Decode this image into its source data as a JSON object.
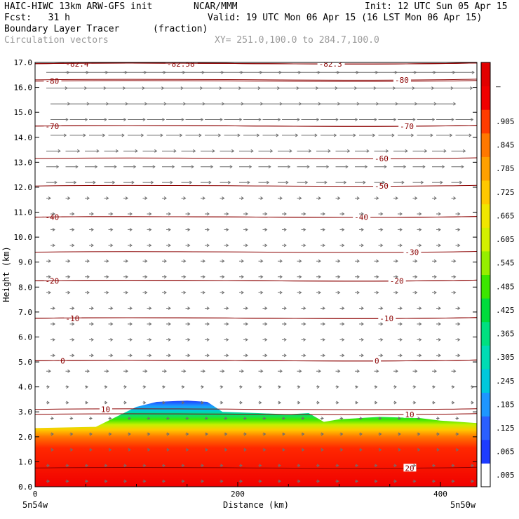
{
  "header": {
    "model": "HAIC-HIWC 13km ARW-GFS init",
    "org": "NCAR/MMM",
    "init": "Init: 12 UTC Sun 05 Apr 15",
    "fcst": "Fcst:   31 h",
    "valid": "Valid: 19 UTC Mon 06 Apr 15 (16 LST Mon 06 Apr 15)",
    "field": "Boundary Layer Tracer",
    "units": "(fraction)",
    "vectors": "Circulation vectors",
    "xy": "XY= 251.0,100.0 to 284.7,100.0"
  },
  "chart_data": {
    "type": "heatmap",
    "title": "Boundary Layer Tracer",
    "xlabel": "Distance (km)",
    "ylabel": "Height (km)",
    "xlim": [
      0,
      436
    ],
    "ylim": [
      0,
      17
    ],
    "x_ticks": [
      "0",
      "200",
      "400"
    ],
    "x_tick_values": [
      0,
      200,
      400
    ],
    "x_end_labels": [
      "5n54w",
      "5n50w"
    ],
    "y_ticks": [
      "0.0",
      "1.0",
      "2.0",
      "3.0",
      "4.0",
      "5.0",
      "6.0",
      "7.0",
      "8.0",
      "9.0",
      "10.0",
      "11.0",
      "12.0",
      "13.0",
      "14.0",
      "15.0",
      "16.0",
      "17.0"
    ],
    "colorbar": {
      "labels": [
        ".005",
        ".065",
        ".125",
        ".185",
        ".245",
        ".305",
        ".365",
        ".425",
        ".485",
        ".545",
        ".605",
        ".665",
        ".725",
        ".785",
        ".845",
        ".905",
        "–"
      ],
      "colors": [
        "#ffffff",
        "#1e3cff",
        "#2a5fff",
        "#1e96ff",
        "#00c8dc",
        "#00dcb4",
        "#00e080",
        "#00dc3c",
        "#3ce600",
        "#96ee00",
        "#d2f000",
        "#f0e600",
        "#ffc800",
        "#ffa000",
        "#ff7800",
        "#ff3c00",
        "#f00000",
        "#e10000"
      ]
    },
    "tracer_top_km": [
      {
        "x": 0,
        "top": 2.35
      },
      {
        "x": 60,
        "top": 2.4
      },
      {
        "x": 80,
        "top": 2.8
      },
      {
        "x": 100,
        "top": 3.2
      },
      {
        "x": 120,
        "top": 3.4
      },
      {
        "x": 150,
        "top": 3.45
      },
      {
        "x": 170,
        "top": 3.4
      },
      {
        "x": 185,
        "top": 3.0
      },
      {
        "x": 220,
        "top": 2.95
      },
      {
        "x": 250,
        "top": 2.9
      },
      {
        "x": 270,
        "top": 2.95
      },
      {
        "x": 285,
        "top": 2.6
      },
      {
        "x": 300,
        "top": 2.7
      },
      {
        "x": 340,
        "top": 2.8
      },
      {
        "x": 380,
        "top": 2.75
      },
      {
        "x": 400,
        "top": 2.65
      },
      {
        "x": 436,
        "top": 2.55
      }
    ],
    "temperature_contours": [
      {
        "label": "-82.4",
        "y_km": 16.95,
        "label_x": 30
      },
      {
        "label": "-82.58",
        "y_km": 16.95,
        "label_x": 130
      },
      {
        "label": "-82.3",
        "y_km": 16.95,
        "label_x": 280
      },
      {
        "label": "-80",
        "y_km": 16.25,
        "label_x": 10
      },
      {
        "label": "-80",
        "y_km": 16.3,
        "label_x": 355
      },
      {
        "label": "-70",
        "y_km": 14.45,
        "label_x": 10
      },
      {
        "label": "-70",
        "y_km": 14.45,
        "label_x": 360
      },
      {
        "label": "-60",
        "y_km": 13.15,
        "label_x": 335
      },
      {
        "label": "-50",
        "y_km": 12.05,
        "label_x": 335
      },
      {
        "label": "-40",
        "y_km": 10.8,
        "label_x": 10
      },
      {
        "label": "-40",
        "y_km": 10.8,
        "label_x": 315
      },
      {
        "label": "-30",
        "y_km": 9.4,
        "label_x": 365
      },
      {
        "label": "-20",
        "y_km": 8.25,
        "label_x": 10
      },
      {
        "label": "-20",
        "y_km": 8.25,
        "label_x": 350
      },
      {
        "label": "-10",
        "y_km": 6.75,
        "label_x": 30
      },
      {
        "label": "-10",
        "y_km": 6.75,
        "label_x": 340
      },
      {
        "label": "0",
        "y_km": 5.05,
        "label_x": 25
      },
      {
        "label": "0",
        "y_km": 5.05,
        "label_x": 335
      },
      {
        "label": "10",
        "y_km": 3.1,
        "label_x": 65
      },
      {
        "label": "10",
        "y_km": 2.9,
        "label_x": 365
      },
      {
        "label": "20",
        "y_km": 0.75,
        "label_x": 365
      }
    ]
  }
}
